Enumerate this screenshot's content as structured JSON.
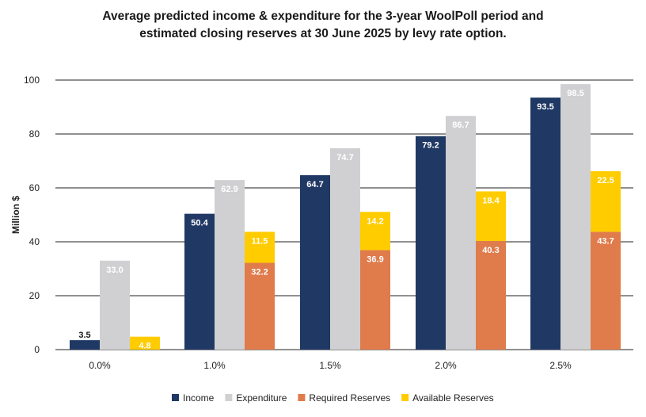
{
  "title_line1": "Average predicted income & expenditure for the 3-year WoolPoll period and",
  "title_line2": "estimated closing reserves at 30 June 2025 by levy rate option.",
  "chart_data": {
    "type": "bar",
    "title": "Average predicted income & expenditure for the 3-year WoolPoll period and estimated closing reserves at 30 June 2025 by levy rate option.",
    "xlabel": "",
    "ylabel": "Million $",
    "ylim": [
      0,
      100
    ],
    "yticks": [
      0,
      20,
      40,
      60,
      80,
      100
    ],
    "grid": true,
    "legend_position": "bottom",
    "categories": [
      "0.0%",
      "1.0%",
      "1.5%",
      "2.0%",
      "2.5%"
    ],
    "series": [
      {
        "name": "Income",
        "color": "#1f3864",
        "values": [
          3.5,
          50.4,
          64.7,
          79.2,
          93.5
        ]
      },
      {
        "name": "Expenditure",
        "color": "#d0d0d2",
        "values": [
          33.0,
          62.9,
          74.7,
          86.7,
          98.5
        ]
      },
      {
        "name": "Required Reserves",
        "color": "#e07b4c",
        "values": [
          0,
          32.2,
          36.9,
          40.3,
          43.7
        ]
      },
      {
        "name": "Available Reserves",
        "color": "#ffcc00",
        "values": [
          4.8,
          11.5,
          14.2,
          18.4,
          22.5
        ]
      }
    ],
    "stacks": [
      [
        "Income"
      ],
      [
        "Expenditure"
      ],
      [
        "Required Reserves",
        "Available Reserves"
      ]
    ],
    "data_labels": [
      [
        "3.5",
        "50.4",
        "64.7",
        "79.2",
        "93.5"
      ],
      [
        "33.0",
        "62.9",
        "74.7",
        "86.7",
        "98.5"
      ],
      [
        "",
        "32.2",
        "36.9",
        "40.3",
        "43.7"
      ],
      [
        "4.8",
        "11.5",
        "14.2",
        "18.4",
        "22.5"
      ]
    ]
  }
}
